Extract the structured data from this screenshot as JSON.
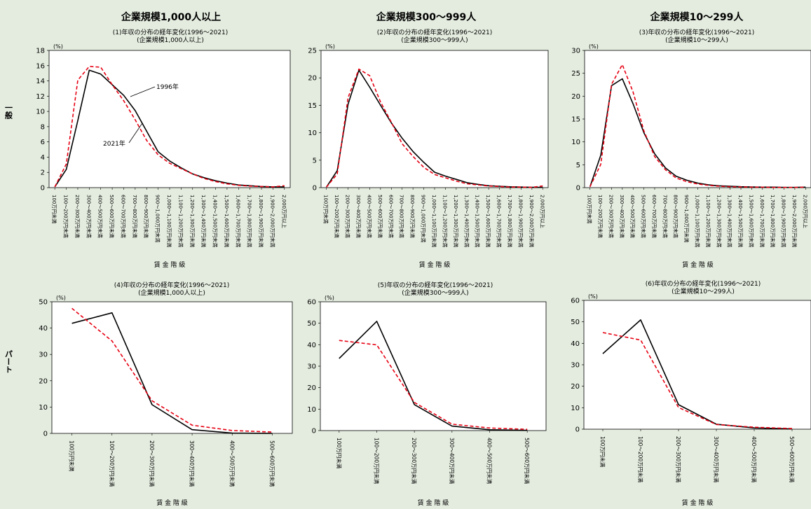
{
  "row_labels": [
    "一般",
    "パート"
  ],
  "column_headers": [
    "企業規模1,000人以上",
    "企業規模300～999人",
    "企業規模10～299人"
  ],
  "colors": {
    "series_1996": "#000000",
    "series_2021": "#e60012",
    "plot_bg": "#ffffff",
    "page_bg": "#e4ecdf"
  },
  "chart_data": [
    {
      "type": "line",
      "title": "(1)年収の分布の経年変化(1996～2021)",
      "subtitle": "(企業規模1,000人以上)",
      "xlabel": "賃 金 階 級",
      "unit": "(%)",
      "ylim": [
        0,
        18
      ],
      "yticks": [
        0,
        2,
        4,
        6,
        8,
        10,
        12,
        14,
        16,
        18
      ],
      "categories": [
        "100万円未満",
        "100～200万円未満",
        "200～300万円未満",
        "300～400万円未満",
        "400～500万円未満",
        "500～600万円未満",
        "600～700万円未満",
        "700～800万円未満",
        "800～900万円未満",
        "900～1,000万円未満",
        "1,000～1,100万円未満",
        "1,100～1,200万円未満",
        "1,200～1,300万円未満",
        "1,300～1,400万円未満",
        "1,400～1,500万円未満",
        "1,500～1,600万円未満",
        "1,600～1,700万円未満",
        "1,700～1,800万円未満",
        "1,800～1,900万円未満",
        "1,900～2,000万円未満",
        "2,000万円以上"
      ],
      "series": [
        {
          "values": [
            0.1,
            2.4,
            8.8,
            15.4,
            14.9,
            13.5,
            12.1,
            10.1,
            7.4,
            4.7,
            3.5,
            2.6,
            1.8,
            1.3,
            0.9,
            0.6,
            0.35,
            0.25,
            0.15,
            0.1,
            0.1
          ]
        },
        {
          "values": [
            0.1,
            3.1,
            14.1,
            15.9,
            15.8,
            13.5,
            11.4,
            8.9,
            6.2,
            4.3,
            3.2,
            2.5,
            1.8,
            1.2,
            0.8,
            0.5,
            0.3,
            0.2,
            0.15,
            0.1,
            0.25
          ]
        }
      ],
      "annotations": [
        "1996年",
        "2021年"
      ]
    },
    {
      "type": "line",
      "title": "(2)年収の分布の経年変化(1996～2021)",
      "subtitle": "(企業規模300～999人)",
      "xlabel": "賃 金 階 級",
      "unit": "(%)",
      "ylim": [
        0,
        25
      ],
      "yticks": [
        0,
        5,
        10,
        15,
        20,
        25
      ],
      "categories": [
        "100万円未満",
        "100～200万円未満",
        "200～300万円未満",
        "300～400万円未満",
        "400～500万円未満",
        "500～600万円未満",
        "600～700万円未満",
        "700～800万円未満",
        "800～900万円未満",
        "900～1,000万円未満",
        "1,000～1,100万円未満",
        "1,100～1,200万円未満",
        "1,200～1,300万円未満",
        "1,300～1,400万円未満",
        "1,400～1,500万円未満",
        "1,500～1,600万円未満",
        "1,600～1,700万円未満",
        "1,700～1,800万円未満",
        "1,800～1,900万円未満",
        "1,900～2,000万円未満",
        "2,000万円以上"
      ],
      "series": [
        {
          "values": [
            0.1,
            3.1,
            15.2,
            21.4,
            18.3,
            15.0,
            11.8,
            9.0,
            6.6,
            4.6,
            2.8,
            2.1,
            1.5,
            0.9,
            0.6,
            0.35,
            0.25,
            0.15,
            0.1,
            0.05,
            0.05
          ]
        },
        {
          "values": [
            0.1,
            2.5,
            16.4,
            21.6,
            20.4,
            15.6,
            11.9,
            8.0,
            5.7,
            3.7,
            2.4,
            1.8,
            1.2,
            0.7,
            0.5,
            0.3,
            0.2,
            0.1,
            0.1,
            0.05,
            0.3
          ]
        }
      ]
    },
    {
      "type": "line",
      "title": "(3)年収の分布の経年変化(1996～2021)",
      "subtitle": "(企業規模10～299人)",
      "xlabel": "賃 金 階 級",
      "unit": "(%)",
      "ylim": [
        0,
        30
      ],
      "yticks": [
        0,
        5,
        10,
        15,
        20,
        25,
        30
      ],
      "categories": [
        "100万円未満",
        "100～200万円未満",
        "200～300万円未満",
        "300～400万円未満",
        "400～500万円未満",
        "500～600万円未満",
        "600～700万円未満",
        "700～800万円未満",
        "800～900万円未満",
        "900～1,000万円未満",
        "1,000～1,100万円未満",
        "1,100～1,200万円未満",
        "1,200～1,300万円未満",
        "1,300～1,400万円未満",
        "1,400～1,500万円未満",
        "1,500～1,600万円未満",
        "1,600～1,700万円未満",
        "1,700～1,800万円未満",
        "1,800～1,900万円未満",
        "1,900～2,000万円未満",
        "2,000万円以上"
      ],
      "series": [
        {
          "values": [
            0.2,
            7.1,
            22.3,
            23.8,
            18.3,
            12.0,
            7.4,
            4.3,
            2.5,
            1.6,
            1.0,
            0.6,
            0.4,
            0.3,
            0.2,
            0.15,
            0.1,
            0.1,
            0.05,
            0.05,
            0.1
          ]
        },
        {
          "values": [
            0.2,
            5.1,
            22.6,
            26.9,
            20.9,
            12.4,
            6.8,
            3.9,
            2.1,
            1.3,
            0.8,
            0.5,
            0.3,
            0.2,
            0.15,
            0.1,
            0.1,
            0.05,
            0.05,
            0.05,
            0.1
          ]
        }
      ]
    },
    {
      "type": "line",
      "title": "(4)年収の分布の経年変化(1996～2021)",
      "subtitle": "(企業規模1,000人以上)",
      "xlabel": "賃 金 階 級",
      "unit": "(%)",
      "ylim": [
        0,
        50
      ],
      "yticks": [
        0,
        10,
        20,
        30,
        40,
        50
      ],
      "categories": [
        "100万円未満",
        "100～200万円未満",
        "200～300万円未満",
        "300～400万円未満",
        "400～500万円未満",
        "500～600万円未満"
      ],
      "series": [
        {
          "values": [
            41.8,
            45.8,
            10.9,
            1.4,
            0.1,
            0.0
          ]
        },
        {
          "values": [
            47.5,
            35.1,
            12.4,
            3.1,
            1.1,
            0.5
          ]
        }
      ]
    },
    {
      "type": "line",
      "title": "(5)年収の分布の経年変化(1996～2021)",
      "subtitle": "(企業規模300～999人)",
      "xlabel": "賃 金 階 級",
      "unit": "(%)",
      "ylim": [
        0,
        60
      ],
      "yticks": [
        0,
        10,
        20,
        30,
        40,
        50,
        60
      ],
      "categories": [
        "100万円未満",
        "100～200万円未満",
        "200～300万円未満",
        "300～400万円未満",
        "400～500万円未満",
        "500～600万円未満"
      ],
      "series": [
        {
          "values": [
            33.6,
            50.9,
            12.1,
            2.1,
            0.4,
            0.1
          ]
        },
        {
          "values": [
            42.0,
            39.9,
            13.1,
            3.0,
            1.2,
            0.6
          ]
        }
      ]
    },
    {
      "type": "line",
      "title": "(6)年収の分布の経年変化(1996～2021)",
      "subtitle": "(企業規模10～299人)",
      "xlabel": "賃 金 階 級",
      "unit": "(%)",
      "ylim": [
        0,
        60
      ],
      "yticks": [
        0,
        10,
        20,
        30,
        40,
        50,
        60
      ],
      "categories": [
        "100万円未満",
        "100～200万円未満",
        "200～300万円未満",
        "300～400万円未満",
        "400～500万円未満",
        "500～600万円未満"
      ],
      "series": [
        {
          "values": [
            35.2,
            50.9,
            11.4,
            2.3,
            0.6,
            0.1
          ]
        },
        {
          "values": [
            45.0,
            41.5,
            10.1,
            2.2,
            0.9,
            0.3
          ]
        }
      ]
    }
  ]
}
